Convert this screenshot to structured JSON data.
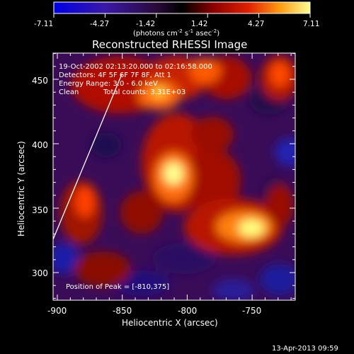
{
  "colorbar": {
    "ticks": [
      "-7.11",
      "-4.27",
      "-1.42",
      "1.42",
      "4.27",
      "7.11"
    ],
    "unit_label": "(photons cm",
    "unit_exp1": "-2",
    "unit_mid": " s",
    "unit_exp2": "-1",
    "unit_end": " asec",
    "unit_exp3": "-2",
    "unit_close": ")"
  },
  "title": "Reconstructed RHESSI Image",
  "info": {
    "line1": "19-Oct-2002 02:13:20.000 to 02:16:58.000",
    "line2": "Detectors: 4F 5F 6F 7F 8F, Att 1",
    "line3": "Energy Range: 3.0 - 6.0 keV",
    "line4_a": "Clean",
    "line4_b": "Total counts: 3.31E+03"
  },
  "peak_label": "Position of Peak = [-810,375]",
  "axes": {
    "xlabel": "Heliocentric X (arcsec)",
    "ylabel": "Heliocentric Y (arcsec)",
    "x_ticks": [
      "-900",
      "-850",
      "-800",
      "-750"
    ],
    "y_ticks": [
      "300",
      "350",
      "400",
      "450"
    ]
  },
  "timestamp": "13-Apr-2013 09:59"
}
